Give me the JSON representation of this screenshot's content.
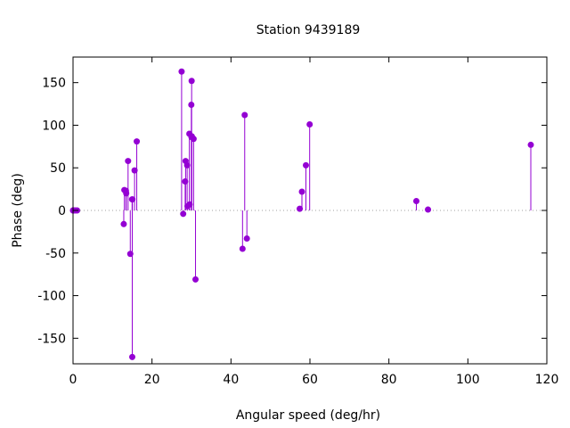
{
  "chart_data": {
    "type": "scatter",
    "title": "Station 9439189",
    "xlabel": "Angular speed (deg/hr)",
    "ylabel": "Phase (deg)",
    "xlim": [
      0,
      120
    ],
    "ylim": [
      -180,
      180
    ],
    "xticks": [
      0,
      20,
      40,
      60,
      80,
      100,
      120
    ],
    "yticks": [
      -150,
      -100,
      -50,
      0,
      50,
      100,
      150
    ],
    "grid": false,
    "zero_line": "dotted",
    "point_color": "#9400d3",
    "series": [
      {
        "x": [
          0.0,
          0.04,
          0.08,
          0.54,
          1.02,
          12.85,
          13.0,
          13.4,
          13.47,
          13.94,
          14.5,
          14.96,
          15.0,
          15.04,
          15.59,
          16.14,
          27.5,
          27.9,
          28.4,
          28.51,
          28.9,
          29.0,
          29.46,
          29.53,
          29.96,
          30.0,
          30.04,
          30.08,
          30.54,
          31.02,
          42.93,
          43.48,
          44.03,
          57.42,
          57.97,
          58.98,
          59.93,
          86.95,
          89.9,
          115.94
        ],
        "y": [
          0,
          0,
          0,
          0,
          0,
          -16,
          24,
          23,
          20,
          58,
          -51,
          13,
          -172,
          13,
          47,
          81,
          163,
          -4,
          34,
          58,
          53,
          5,
          90,
          7,
          124,
          86,
          152,
          87,
          84,
          -81,
          -45,
          112,
          -33,
          2,
          22,
          53,
          101,
          11,
          1,
          77
        ]
      }
    ]
  }
}
